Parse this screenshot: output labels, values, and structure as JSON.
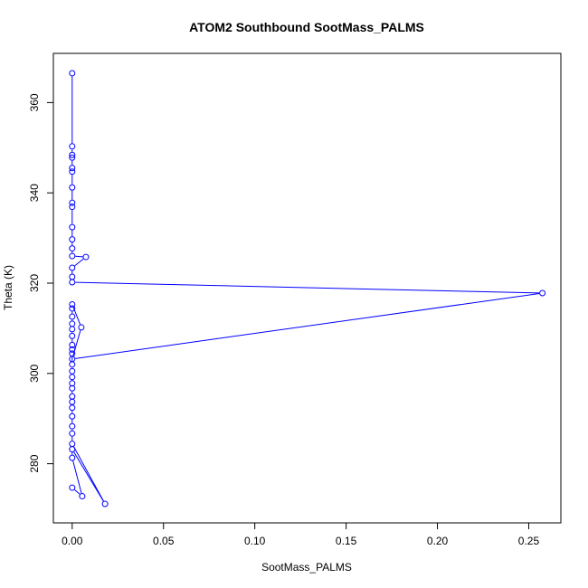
{
  "chart_data": {
    "type": "line",
    "title": "ATOM2 Southbound SootMass_PALMS",
    "xlabel": "SootMass_PALMS",
    "ylabel": "Theta (K)",
    "xlim": [
      -0.0103,
      0.2676
    ],
    "ylim": [
      266.9,
      370.9
    ],
    "xticks": [
      0,
      0.05,
      0.1,
      0.15,
      0.2,
      0.25
    ],
    "xtick_labels": [
      "0.00",
      "0.05",
      "0.10",
      "0.15",
      "0.20",
      "0.25"
    ],
    "yticks": [
      280,
      300,
      320,
      340,
      360
    ],
    "ytick_labels": [
      "280",
      "300",
      "320",
      "340",
      "360"
    ],
    "grid": false,
    "series_color": "#0000ff",
    "series": [
      {
        "points": [
          [
            0,
            366.5
          ],
          [
            0,
            350.3
          ],
          [
            0,
            348.4
          ],
          [
            0,
            347.8
          ],
          [
            0,
            345.5
          ],
          [
            0,
            344.7
          ],
          [
            0,
            341.2
          ],
          [
            0,
            337.8
          ],
          [
            0,
            336.9
          ],
          [
            0,
            332.4
          ],
          [
            0,
            329.7
          ],
          [
            0,
            327.7
          ],
          [
            0,
            326.0
          ],
          [
            0.0075,
            325.8
          ],
          [
            0,
            323.4
          ],
          [
            0,
            321.4
          ],
          [
            0,
            320.2
          ],
          [
            0.2575,
            317.8
          ],
          [
            0,
            303.2
          ],
          [
            0.005,
            310.2
          ],
          [
            0,
            315.3
          ],
          [
            0,
            314.4
          ],
          [
            0,
            312.6
          ],
          [
            0,
            311.0
          ],
          [
            0,
            309.8
          ],
          [
            0,
            308.3
          ],
          [
            0,
            306.3
          ],
          [
            0,
            305.3
          ],
          [
            0,
            304.4
          ],
          [
            0,
            302.0
          ],
          [
            0,
            300.5
          ],
          [
            0,
            299.2
          ],
          [
            0,
            297.8
          ],
          [
            0,
            296.7
          ],
          [
            0,
            294.9
          ],
          [
            0,
            293.7
          ],
          [
            0,
            292.4
          ],
          [
            0,
            290.5
          ],
          [
            0,
            288.3
          ],
          [
            0,
            286.7
          ],
          [
            0,
            284.4
          ],
          [
            0.018,
            271.1
          ],
          [
            0,
            283.2
          ],
          [
            0,
            281.3
          ],
          [
            0.0055,
            272.8
          ],
          [
            0,
            274.7
          ]
        ]
      }
    ]
  }
}
